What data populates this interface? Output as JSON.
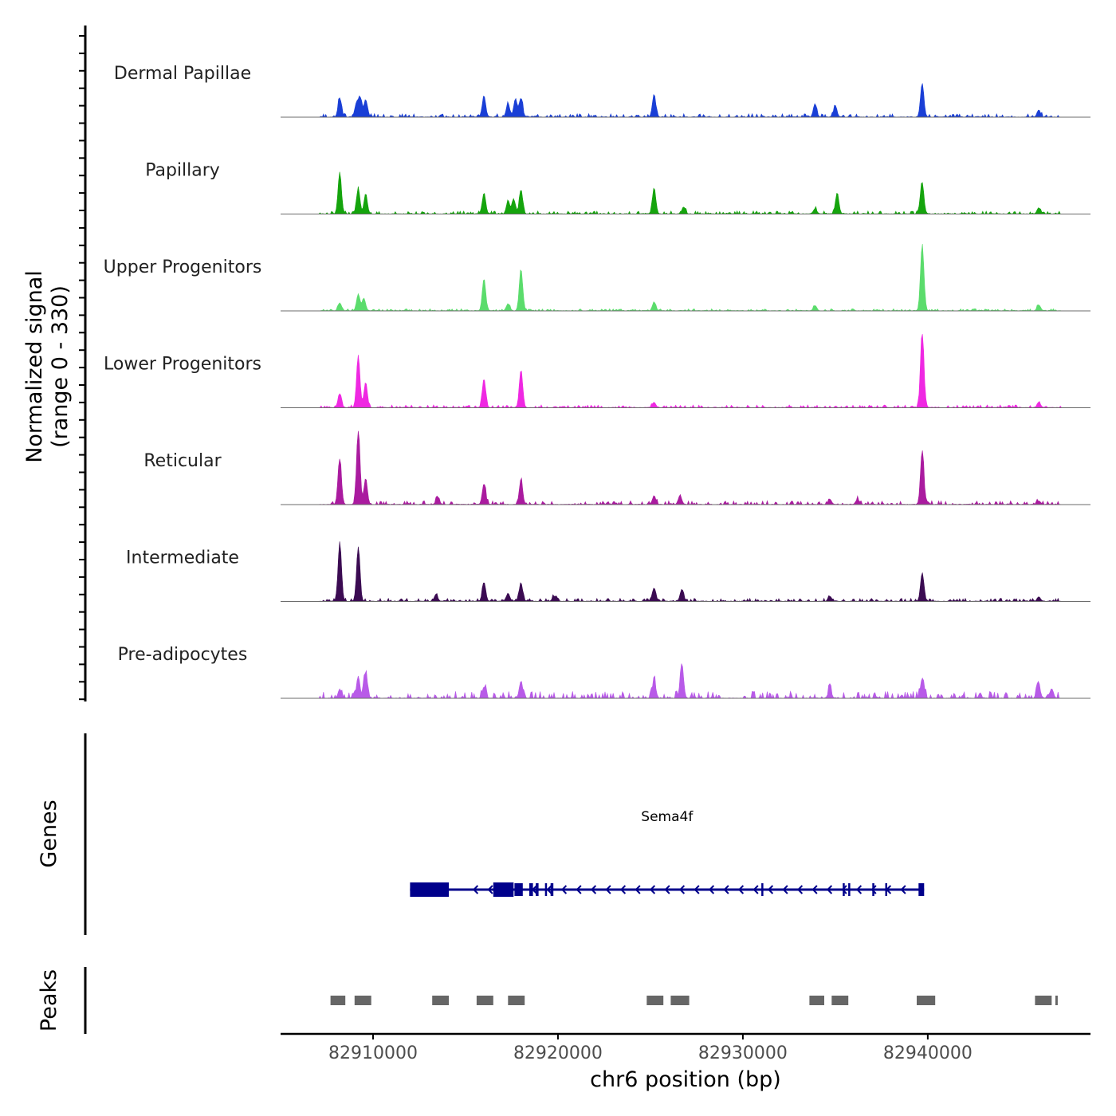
{
  "chart_data": {
    "type": "area",
    "region": {
      "chrom": "chr6",
      "start": 82905000,
      "end": 82948800
    },
    "ylabel": "Normalized signal",
    "ylabel_range": "(range 0 - 330)",
    "ylim": [
      0,
      330
    ],
    "xlabel": "chr6 position (bp)",
    "x_ticks": [
      82910000,
      82920000,
      82930000,
      82940000
    ],
    "x_tick_labels": [
      "82910000",
      "82920000",
      "82930000",
      "82940000"
    ],
    "tracks": [
      {
        "name": "Dermal Papillae",
        "color": "#1a3fd6",
        "peaks": [
          [
            82908200,
            110
          ],
          [
            82909100,
            75
          ],
          [
            82909300,
            110
          ],
          [
            82909600,
            100
          ],
          [
            82916000,
            120
          ],
          [
            82917300,
            80
          ],
          [
            82917700,
            105
          ],
          [
            82918000,
            110
          ],
          [
            82925200,
            130
          ],
          [
            82933900,
            75
          ],
          [
            82935000,
            65
          ],
          [
            82939700,
            195
          ],
          [
            82946000,
            40
          ]
        ],
        "noise": 20
      },
      {
        "name": "Papillary",
        "color": "#15a40d",
        "peaks": [
          [
            82908200,
            240
          ],
          [
            82909200,
            145
          ],
          [
            82909600,
            115
          ],
          [
            82916000,
            120
          ],
          [
            82917300,
            70
          ],
          [
            82917600,
            85
          ],
          [
            82918000,
            140
          ],
          [
            82925200,
            150
          ],
          [
            82926800,
            40
          ],
          [
            82933900,
            30
          ],
          [
            82935100,
            120
          ],
          [
            82939700,
            180
          ],
          [
            82946000,
            35
          ]
        ],
        "noise": 18
      },
      {
        "name": "Upper Progenitors",
        "color": "#5bdc6c",
        "peaks": [
          [
            82908200,
            45
          ],
          [
            82909200,
            95
          ],
          [
            82909500,
            70
          ],
          [
            82916000,
            185
          ],
          [
            82917300,
            40
          ],
          [
            82918000,
            240
          ],
          [
            82925200,
            50
          ],
          [
            82933900,
            30
          ],
          [
            82939700,
            380
          ],
          [
            82946000,
            35
          ]
        ],
        "noise": 12
      },
      {
        "name": "Lower Progenitors",
        "color": "#ef28e2",
        "peaks": [
          [
            82908200,
            80
          ],
          [
            82909200,
            300
          ],
          [
            82909600,
            145
          ],
          [
            82916000,
            165
          ],
          [
            82918000,
            215
          ],
          [
            82925200,
            30
          ],
          [
            82939700,
            450
          ],
          [
            82946000,
            30
          ]
        ],
        "noise": 16
      },
      {
        "name": "Reticular",
        "color": "#aa1b9f",
        "peaks": [
          [
            82908200,
            260
          ],
          [
            82909200,
            430
          ],
          [
            82909600,
            150
          ],
          [
            82913500,
            40
          ],
          [
            82916000,
            120
          ],
          [
            82918000,
            140
          ],
          [
            82925200,
            50
          ],
          [
            82926600,
            50
          ],
          [
            82934700,
            30
          ],
          [
            82936200,
            30
          ],
          [
            82939700,
            310
          ],
          [
            82946000,
            20
          ]
        ],
        "noise": 22
      },
      {
        "name": "Intermediate",
        "color": "#3b0b52",
        "peaks": [
          [
            82908200,
            340
          ],
          [
            82909200,
            310
          ],
          [
            82913400,
            40
          ],
          [
            82916000,
            110
          ],
          [
            82917300,
            45
          ],
          [
            82918000,
            105
          ],
          [
            82919800,
            30
          ],
          [
            82925200,
            75
          ],
          [
            82926700,
            70
          ],
          [
            82934700,
            30
          ],
          [
            82939700,
            165
          ],
          [
            82946000,
            25
          ]
        ],
        "noise": 18
      },
      {
        "name": "Pre-adipocytes",
        "color": "#b85ae8",
        "peaks": [
          [
            82908200,
            50
          ],
          [
            82909200,
            125
          ],
          [
            82909600,
            145
          ],
          [
            82916000,
            65
          ],
          [
            82918000,
            95
          ],
          [
            82925200,
            100
          ],
          [
            82926700,
            200
          ],
          [
            82934700,
            50
          ],
          [
            82939700,
            115
          ],
          [
            82946000,
            70
          ],
          [
            82946700,
            55
          ]
        ],
        "noise": 40
      }
    ],
    "genes_label": "Genes",
    "gene": {
      "name": "Sema4f",
      "strand": "-",
      "start": 82912000,
      "end": 82939800,
      "exons": [
        [
          82912000,
          82914100
        ],
        [
          82916500,
          82917600
        ],
        [
          82917650,
          82918100
        ],
        [
          82918450,
          82918650
        ],
        [
          82918800,
          82918950
        ],
        [
          82919300,
          82919350
        ],
        [
          82919600,
          82919750
        ],
        [
          82931000,
          82931050
        ],
        [
          82935400,
          82935450
        ],
        [
          82935700,
          82935750
        ],
        [
          82937000,
          82937050
        ],
        [
          82937700,
          82937750
        ],
        [
          82939500,
          82939800
        ]
      ],
      "thick_exons": [
        [
          82912000,
          82914100
        ],
        [
          82916500,
          82917600
        ]
      ]
    },
    "peaks_label": "Peaks",
    "peak_regions": [
      [
        82907700,
        82908500
      ],
      [
        82909000,
        82909900
      ],
      [
        82913200,
        82914100
      ],
      [
        82915600,
        82916500
      ],
      [
        82917300,
        82918200
      ],
      [
        82924800,
        82925700
      ],
      [
        82926100,
        82927100
      ],
      [
        82933600,
        82934400
      ],
      [
        82934800,
        82935700
      ],
      [
        82939400,
        82940400
      ],
      [
        82945800,
        82946700
      ],
      [
        82946900,
        82947000
      ]
    ]
  }
}
